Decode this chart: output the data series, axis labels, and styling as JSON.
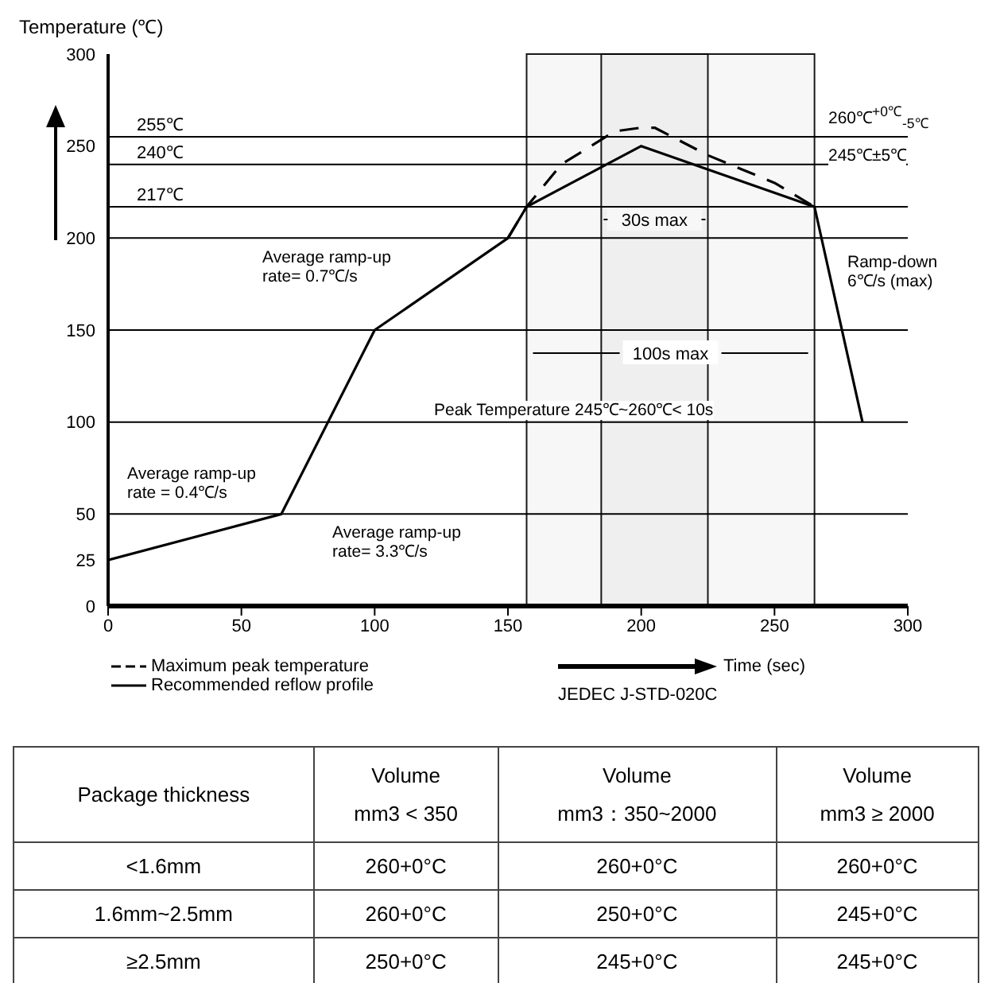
{
  "chart_data": {
    "type": "line",
    "ylabel": "Temperature (℃)",
    "xlabel": "Time (sec)",
    "xlim": [
      0,
      300
    ],
    "xticks": [
      0,
      50,
      100,
      150,
      200,
      250,
      300
    ],
    "ylim": [
      0,
      300
    ],
    "yticks": [
      0,
      25,
      50,
      100,
      150,
      200,
      250,
      300
    ],
    "grid": false,
    "legend": "bottom left",
    "marker": "none",
    "series": [
      {
        "name": "Maximum peak temperature",
        "color": "#000000",
        "line_style": "dashed",
        "x": [
          150,
          157,
          170,
          190,
          200,
          205,
          225,
          250,
          265
        ],
        "values": [
          200,
          217,
          240,
          258,
          260,
          260,
          245,
          230,
          217
        ]
      },
      {
        "name": "Recommended reflow profile",
        "color": "#000000",
        "line_style": "solid",
        "x": [
          0,
          65,
          100,
          150,
          157,
          200,
          265,
          283
        ],
        "values": [
          25,
          50,
          150,
          200,
          217,
          250,
          217,
          100
        ]
      }
    ],
    "ref_lines": [
      {
        "axis": "y",
        "value": 255,
        "label": "255℃"
      },
      {
        "axis": "y",
        "value": 240,
        "label": "240℃"
      },
      {
        "axis": "y",
        "value": 217,
        "label": "217℃"
      },
      {
        "axis": "y",
        "value": 200
      },
      {
        "axis": "y",
        "value": 150
      },
      {
        "axis": "y",
        "value": 100
      },
      {
        "axis": "y",
        "value": 50
      }
    ],
    "bands": [
      {
        "axis": "x",
        "from": 185,
        "to": 225,
        "label": "30s max"
      },
      {
        "axis": "x",
        "from": 157,
        "to": 265,
        "label": "100s max"
      }
    ],
    "annotations": [
      "Average ramp-up\nrate = 0.4℃/s",
      "Average ramp-up\nrate= 3.3℃/s",
      "Average ramp-up\nrate= 0.7℃/s",
      "Ramp-down\n6℃/s (max)",
      "260℃$^{+0℃}$$_{-5℃}$",
      "245℃±5℃",
      "Peak Temperature 245℃~260℃< 10s",
      "JEDEC J-STD-020C",
      "Package thickness",
      "Volume\nmm3 < 350",
      "Volume\nmm3：350~2000",
      "Volume\nmm3 ≥ 2000",
      "<1.6mm",
      "260+0°C",
      "260+0°C",
      "260+0°C",
      "1.6mm~2.5mm",
      "260+0°C",
      "250+0°C",
      "245+0°C",
      "≥2.5mm",
      "250+0°C",
      "245+0°C",
      "245+0°C"
    ]
  }
}
